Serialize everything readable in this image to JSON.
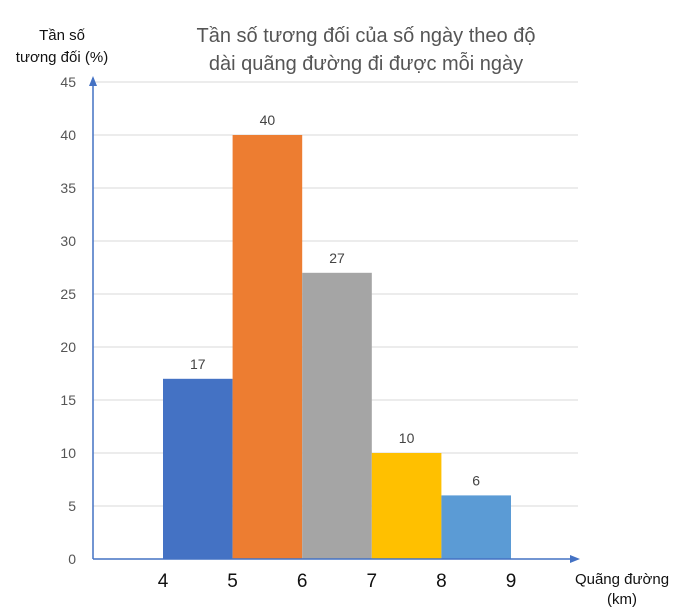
{
  "chart_data": {
    "type": "bar",
    "title_lines": [
      "Tần số tương đối của số ngày theo độ",
      "dài quãng đường đi được mỗi ngày"
    ],
    "ylabel_lines": [
      "Tần số",
      "tương đối (%)"
    ],
    "xlabel_lines": [
      "Quãng đường",
      "(km)"
    ],
    "x_ticks": [
      "4",
      "5",
      "6",
      "7",
      "8",
      "9"
    ],
    "bins": [
      {
        "from": 4,
        "to": 5,
        "value": 17,
        "label": "17",
        "color": "#4472C4"
      },
      {
        "from": 5,
        "to": 6,
        "value": 40,
        "label": "40",
        "color": "#ED7D31"
      },
      {
        "from": 6,
        "to": 7,
        "value": 27,
        "label": "27",
        "color": "#A5A5A5"
      },
      {
        "from": 7,
        "to": 8,
        "value": 10,
        "label": "10",
        "color": "#FFC000"
      },
      {
        "from": 8,
        "to": 9,
        "value": 6,
        "label": "6",
        "color": "#5B9BD5"
      }
    ],
    "y_ticks": [
      "0",
      "5",
      "10",
      "15",
      "20",
      "25",
      "30",
      "35",
      "40",
      "45"
    ],
    "ylim": [
      0,
      45
    ],
    "grid": true,
    "axis_color": "#4472C4",
    "grid_color": "#D9D9D9"
  }
}
